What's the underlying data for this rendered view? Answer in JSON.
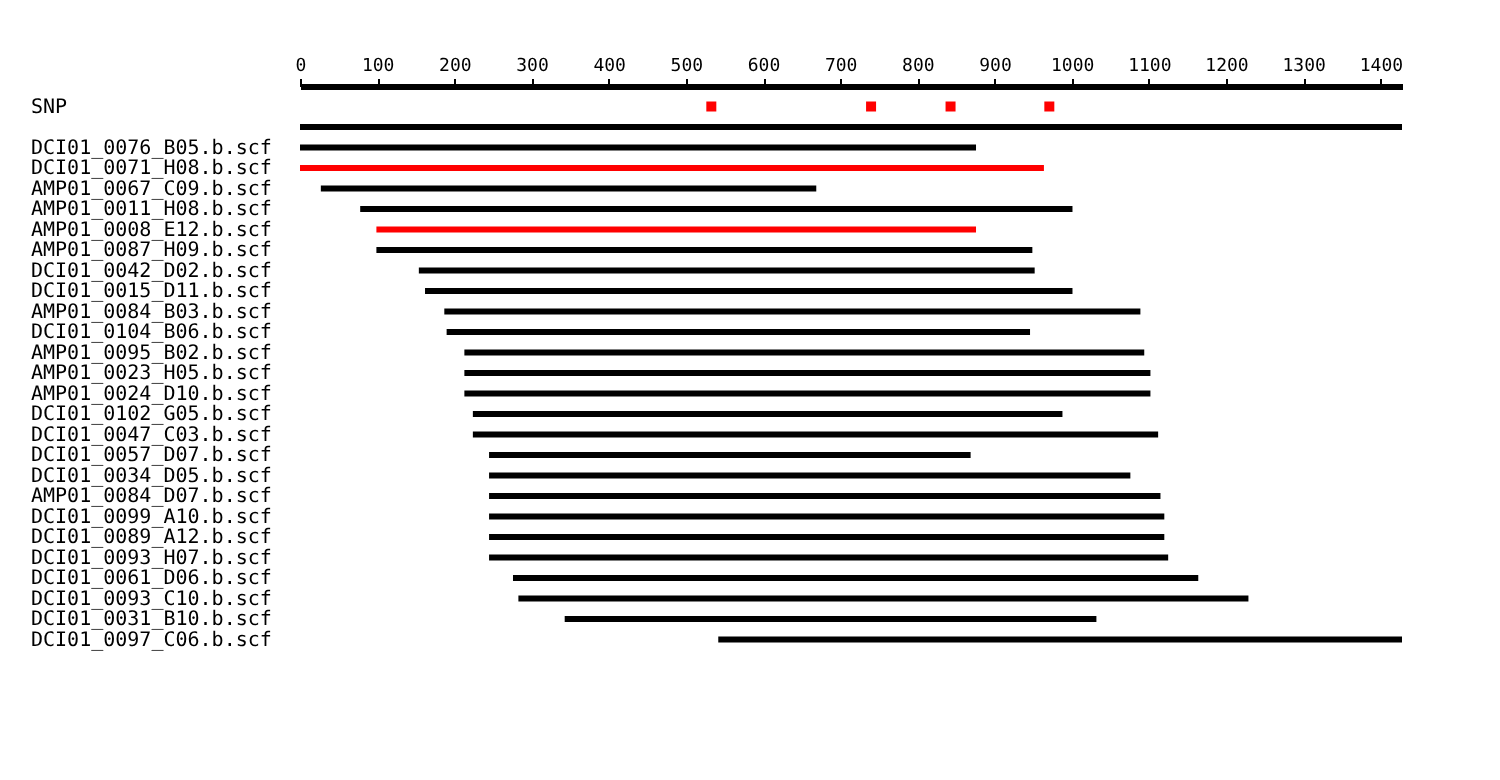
{
  "chart_data": {
    "type": "bar",
    "orientation": "horizontal",
    "categories": [
      "SNP",
      null,
      "DCI01_0076_B05.b.scf",
      "DCI01_0071_H08.b.scf",
      "AMP01_0067_C09.b.scf",
      "AMP01_0011_H08.b.scf",
      "AMP01_0008_E12.b.scf",
      "AMP01_0087_H09.b.scf",
      "DCI01_0042_D02.b.scf",
      "DCI01_0015_D11.b.scf",
      "AMP01_0084_B03.b.scf",
      "DCI01_0104_B06.b.scf",
      "AMP01_0095_B02.b.scf",
      "AMP01_0023_H05.b.scf",
      "AMP01_0024_D10.b.scf",
      "DCI01_0102_G05.b.scf",
      "DCI01_0047_C03.b.scf",
      "DCI01_0057_D07.b.scf",
      "DCI01_0034_D05.b.scf",
      "AMP01_0084_D07.b.scf",
      "DCI01_0099_A10.b.scf",
      "DCI01_0089_A12.b.scf",
      "DCI01_0093_H07.b.scf",
      "DCI01_0061_D06.b.scf",
      "DCI01_0093_C10.b.scf",
      "DCI01_0031_B10.b.scf",
      "DCI01_0097_C06.b.scf"
    ],
    "series": [
      {
        "base": [
          null,
          0,
          0,
          0,
          27,
          78,
          99,
          99,
          154,
          162,
          187,
          190,
          213,
          213,
          213,
          224,
          224,
          245,
          245,
          245,
          245,
          245,
          245,
          276,
          283,
          343,
          542
        ],
        "values": [
          null,
          1428,
          876,
          964,
          642,
          923,
          777,
          850,
          798,
          839,
          902,
          756,
          881,
          889,
          889,
          764,
          888,
          624,
          831,
          870,
          875,
          875,
          880,
          888,
          946,
          689,
          886
        ],
        "colors": [
          "#000000",
          "#000000",
          "#000000",
          "#ff0000",
          "#000000",
          "#000000",
          "#ff0000",
          "#000000",
          "#000000",
          "#000000",
          "#000000",
          "#000000",
          "#000000",
          "#000000",
          "#000000",
          "#000000",
          "#000000",
          "#000000",
          "#000000",
          "#000000",
          "#000000",
          "#000000",
          "#000000",
          "#000000",
          "#000000",
          "#000000",
          "#000000"
        ]
      },
      {
        "type": "scatter",
        "color": "#ff0000",
        "marker": "square",
        "x": [
          "SNP",
          "SNP",
          "SNP",
          "SNP"
        ],
        "values": [
          533,
          740,
          843,
          971
        ]
      }
    ],
    "xlim": [
      0,
      1428
    ],
    "xticks": [
      0,
      100,
      200,
      300,
      400,
      500,
      600,
      700,
      800,
      900,
      1000,
      1100,
      1200,
      1300,
      1400
    ],
    "grid": false
  }
}
